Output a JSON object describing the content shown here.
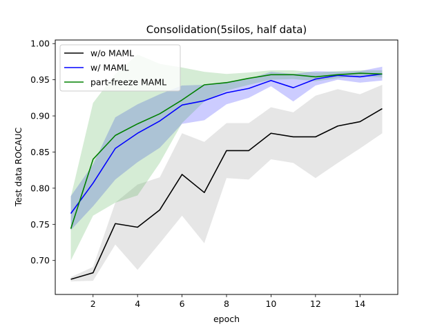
{
  "chart_data": {
    "type": "line",
    "title": "Consolidation(5silos, half data)",
    "xlabel": "epoch",
    "ylabel": "Test data ROCAUC",
    "xlim": [
      0.3,
      15.7
    ],
    "ylim": [
      0.653,
      1.005
    ],
    "xticks": [
      2,
      4,
      6,
      8,
      10,
      12,
      14
    ],
    "yticks": [
      0.7,
      0.75,
      0.8,
      0.85,
      0.9,
      0.95,
      1.0
    ],
    "ytick_labels": [
      "0.70",
      "0.75",
      "0.80",
      "0.85",
      "0.90",
      "0.95",
      "1.00"
    ],
    "grid": false,
    "legend_position": "top-left",
    "x": [
      1,
      2,
      3,
      4,
      5,
      6,
      7,
      8,
      9,
      10,
      11,
      12,
      13,
      14,
      15
    ],
    "series": [
      {
        "name": "w/o MAML",
        "color": "#000000",
        "band_color": "#808080",
        "values": [
          0.674,
          0.683,
          0.751,
          0.746,
          0.77,
          0.819,
          0.794,
          0.852,
          0.852,
          0.876,
          0.871,
          0.871,
          0.886,
          0.892,
          0.91
        ],
        "lower": [
          0.671,
          0.672,
          0.722,
          0.687,
          0.724,
          0.762,
          0.724,
          0.814,
          0.812,
          0.84,
          0.835,
          0.814,
          0.835,
          0.855,
          0.876
        ],
        "upper": [
          0.677,
          0.691,
          0.78,
          0.805,
          0.815,
          0.876,
          0.864,
          0.89,
          0.89,
          0.912,
          0.905,
          0.928,
          0.937,
          0.93,
          0.943
        ]
      },
      {
        "name": "w/ MAML",
        "color": "#0000ff",
        "band_color": "#0000ff",
        "values": [
          0.765,
          0.807,
          0.855,
          0.876,
          0.893,
          0.915,
          0.921,
          0.932,
          0.938,
          0.949,
          0.939,
          0.951,
          0.956,
          0.954,
          0.958
        ],
        "lower": [
          0.742,
          0.775,
          0.812,
          0.836,
          0.856,
          0.889,
          0.894,
          0.916,
          0.925,
          0.941,
          0.92,
          0.942,
          0.95,
          0.946,
          0.949
        ],
        "upper": [
          0.789,
          0.833,
          0.898,
          0.916,
          0.93,
          0.942,
          0.943,
          0.947,
          0.951,
          0.961,
          0.958,
          0.962,
          0.961,
          0.962,
          0.968
        ]
      },
      {
        "name": "part-freeze MAML",
        "color": "#008000",
        "band_color": "#2ca02c",
        "values": [
          0.744,
          0.84,
          0.873,
          0.889,
          0.903,
          0.922,
          0.943,
          0.946,
          0.952,
          0.957,
          0.957,
          0.954,
          0.957,
          0.959,
          0.958
        ],
        "lower": [
          0.7,
          0.762,
          0.78,
          0.79,
          0.835,
          0.89,
          0.92,
          0.935,
          0.943,
          0.95,
          0.951,
          0.948,
          0.952,
          0.955,
          0.953
        ],
        "upper": [
          0.788,
          0.918,
          0.958,
          0.985,
          0.972,
          0.967,
          0.961,
          0.958,
          0.96,
          0.963,
          0.963,
          0.96,
          0.962,
          0.963,
          0.963
        ]
      }
    ]
  }
}
